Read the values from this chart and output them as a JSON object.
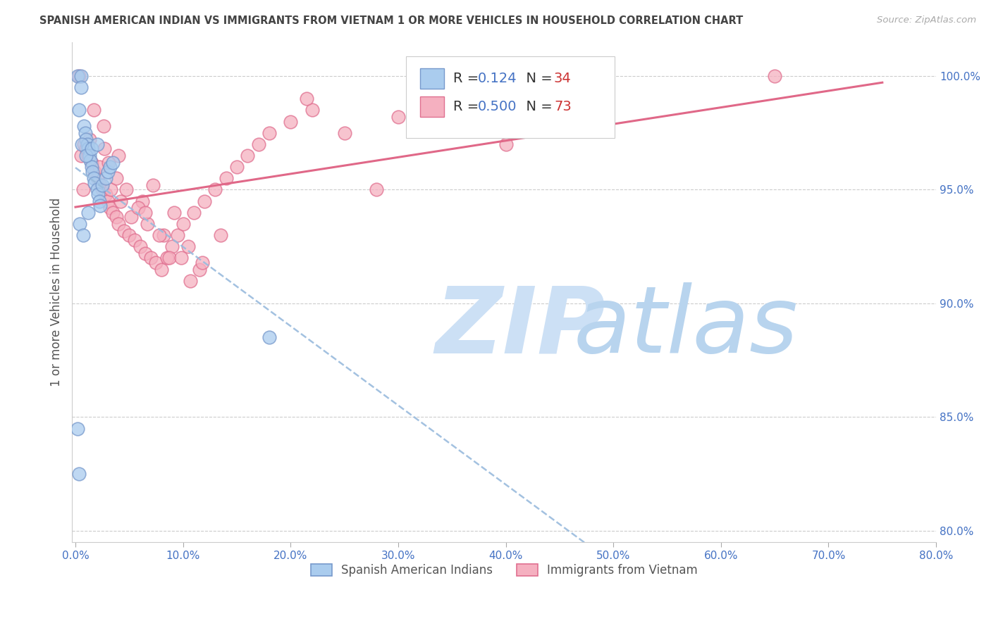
{
  "title": "SPANISH AMERICAN INDIAN VS IMMIGRANTS FROM VIETNAM 1 OR MORE VEHICLES IN HOUSEHOLD CORRELATION CHART",
  "source": "Source: ZipAtlas.com",
  "ylabel": "1 or more Vehicles in Household",
  "x_tick_labels": [
    "0.0%",
    "10.0%",
    "20.0%",
    "30.0%",
    "40.0%",
    "50.0%",
    "60.0%",
    "70.0%",
    "80.0%"
  ],
  "x_tick_vals": [
    0.0,
    10.0,
    20.0,
    30.0,
    40.0,
    50.0,
    60.0,
    70.0,
    80.0
  ],
  "y_tick_labels": [
    "100.0%",
    "95.0%",
    "90.0%",
    "85.0%",
    "80.0%"
  ],
  "y_tick_vals": [
    100.0,
    95.0,
    90.0,
    85.0,
    80.0
  ],
  "xlim": [
    -0.3,
    80.0
  ],
  "ylim": [
    79.5,
    101.5
  ],
  "title_color": "#444444",
  "source_color": "#aaaaaa",
  "axis_label_color": "#555555",
  "tick_color": "#4472c4",
  "grid_color": "#cccccc",
  "watermark_zip": "ZIP",
  "watermark_atlas": "atlas",
  "watermark_color": "#cce0f5",
  "legend_R1": "0.124",
  "legend_N1": "34",
  "legend_R2": "0.500",
  "legend_N2": "73",
  "group1_label": "Spanish American Indians",
  "group2_label": "Immigrants from Vietnam",
  "group1_color": "#aaccee",
  "group2_color": "#f5b0c0",
  "group1_edge_color": "#7799cc",
  "group2_edge_color": "#e07090",
  "trend1_color": "#99bbdd",
  "trend2_color": "#e06888",
  "legend_R1_color": "#4472c4",
  "legend_N1_color": "#cc3333",
  "legend_R2_color": "#4472c4",
  "legend_N2_color": "#cc3333",
  "scatter1_x": [
    0.2,
    0.5,
    0.5,
    0.8,
    0.9,
    1.0,
    1.1,
    1.2,
    1.3,
    1.4,
    1.5,
    1.6,
    1.7,
    1.8,
    2.0,
    2.1,
    2.2,
    2.3,
    2.5,
    2.8,
    3.0,
    3.2,
    3.5,
    0.3,
    0.6,
    1.0,
    1.5,
    2.0,
    0.4,
    0.7,
    1.2,
    0.2,
    0.3,
    18.0
  ],
  "scatter1_y": [
    100.0,
    100.0,
    99.5,
    97.8,
    97.5,
    97.2,
    97.0,
    96.8,
    96.5,
    96.3,
    96.0,
    95.8,
    95.5,
    95.3,
    95.0,
    94.8,
    94.5,
    94.3,
    95.2,
    95.5,
    95.8,
    96.0,
    96.2,
    98.5,
    97.0,
    96.5,
    96.8,
    97.0,
    93.5,
    93.0,
    94.0,
    84.5,
    82.5,
    88.5
  ],
  "scatter2_x": [
    0.5,
    0.8,
    1.0,
    1.2,
    1.5,
    1.8,
    2.0,
    2.3,
    2.5,
    2.8,
    3.0,
    3.2,
    3.5,
    3.8,
    4.0,
    4.5,
    5.0,
    5.5,
    6.0,
    6.5,
    7.0,
    7.5,
    8.0,
    8.5,
    9.0,
    9.5,
    10.0,
    11.0,
    12.0,
    13.0,
    14.0,
    15.0,
    16.0,
    17.0,
    18.0,
    20.0,
    22.0,
    25.0,
    30.0,
    35.0,
    40.0,
    65.0,
    1.3,
    2.2,
    3.3,
    4.2,
    5.2,
    6.2,
    7.2,
    8.2,
    9.2,
    10.5,
    11.5,
    13.5,
    2.7,
    4.7,
    6.7,
    8.7,
    10.7,
    3.8,
    5.8,
    7.8,
    9.8,
    11.8,
    0.3,
    1.7,
    2.6,
    4.0,
    21.5,
    0.7,
    6.5,
    3.1,
    28.0
  ],
  "scatter2_y": [
    96.5,
    97.0,
    96.8,
    96.5,
    96.2,
    95.8,
    95.5,
    95.2,
    95.0,
    94.8,
    94.5,
    94.2,
    94.0,
    93.8,
    93.5,
    93.2,
    93.0,
    92.8,
    92.5,
    92.2,
    92.0,
    91.8,
    91.5,
    92.0,
    92.5,
    93.0,
    93.5,
    94.0,
    94.5,
    95.0,
    95.5,
    96.0,
    96.5,
    97.0,
    97.5,
    98.0,
    98.5,
    97.5,
    98.2,
    98.8,
    97.0,
    100.0,
    97.2,
    96.0,
    95.0,
    94.5,
    93.8,
    94.5,
    95.2,
    93.0,
    94.0,
    92.5,
    91.5,
    93.0,
    96.8,
    95.0,
    93.5,
    92.0,
    91.0,
    95.5,
    94.2,
    93.0,
    92.0,
    91.8,
    100.0,
    98.5,
    97.8,
    96.5,
    99.0,
    95.0,
    94.0,
    96.2,
    95.0
  ],
  "trend1_x_start": 0.2,
  "trend1_x_end": 65.0,
  "trend2_x_start": 0.3,
  "trend2_x_end": 65.0
}
